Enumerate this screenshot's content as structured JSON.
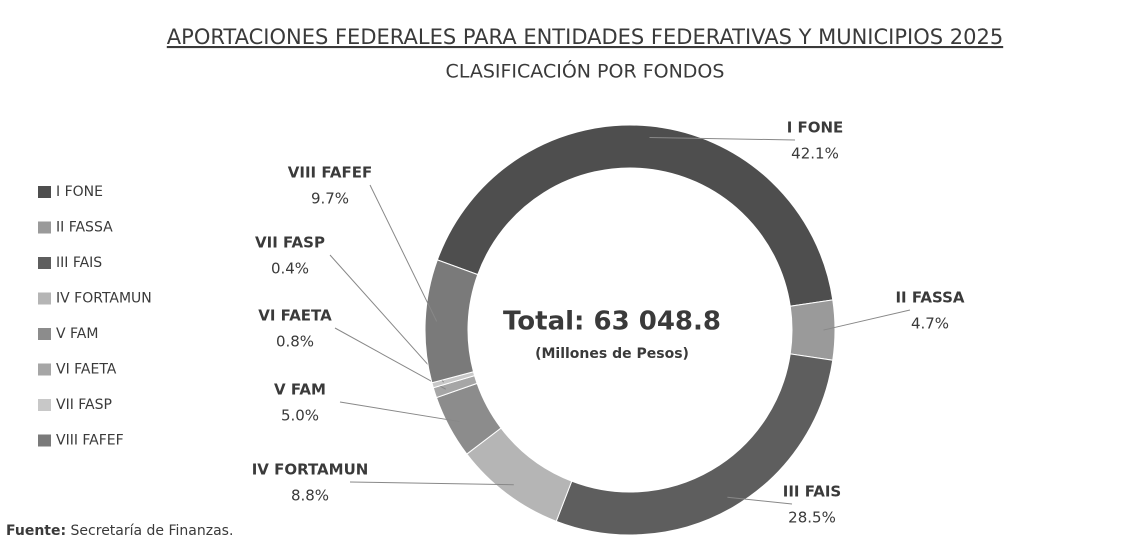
{
  "chart_data": {
    "type": "donut",
    "title": "APORTACIONES FEDERALES PARA ENTIDADES FEDERATIVAS Y MUNICIPIOS 2025",
    "subtitle": "CLASIFICACIÓN  POR FONDOS",
    "categories": [
      "I FONE",
      "II FASSA",
      "III FAIS",
      "IV FORTAMUN",
      "V FAM",
      "VI FAETA",
      "VII FASP",
      "VIII FAFEF"
    ],
    "values": [
      42.1,
      4.7,
      28.5,
      8.8,
      5.0,
      0.8,
      0.4,
      9.7
    ],
    "value_labels": [
      "42.1%",
      "4.7%",
      "28.5%",
      "8.8%",
      "5.0%",
      "0.8%",
      "0.4%",
      "9.7%"
    ],
    "colors": [
      "#4e4e4e",
      "#9a9a9a",
      "#5e5e5e",
      "#b5b5b5",
      "#8c8c8c",
      "#a6a6a6",
      "#c8c8c8",
      "#7a7a7a"
    ],
    "center_label": "Total: 63 048.8",
    "center_sublabel": "(Millones de Pesos)",
    "legend": "left",
    "source_label": "Fuente:",
    "source": "Secretaría de Finanzas."
  }
}
